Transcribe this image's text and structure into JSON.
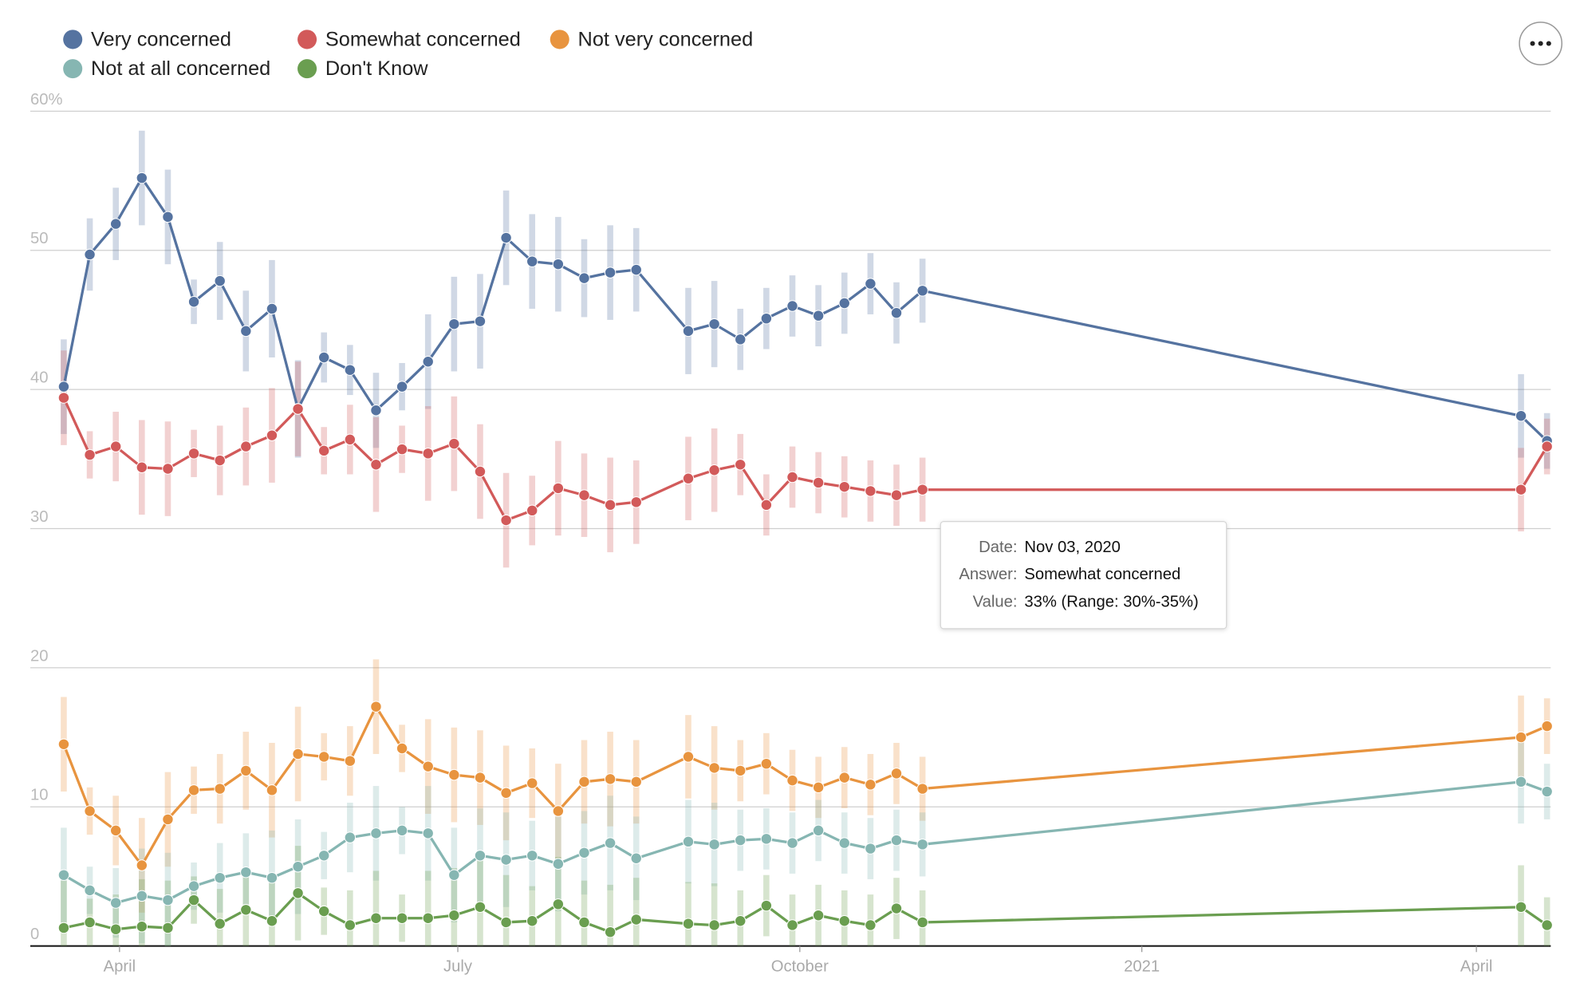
{
  "chart_data": {
    "type": "line",
    "x": [
      "2020-03-17",
      "2020-03-24",
      "2020-03-31",
      "2020-04-07",
      "2020-04-14",
      "2020-04-21",
      "2020-04-28",
      "2020-05-05",
      "2020-05-12",
      "2020-05-19",
      "2020-05-26",
      "2020-06-02",
      "2020-06-09",
      "2020-06-16",
      "2020-06-23",
      "2020-06-30",
      "2020-07-07",
      "2020-07-14",
      "2020-07-21",
      "2020-07-28",
      "2020-08-04",
      "2020-08-11",
      "2020-08-18",
      "2020-09-01",
      "2020-09-08",
      "2020-09-15",
      "2020-09-22",
      "2020-09-29",
      "2020-10-06",
      "2020-10-13",
      "2020-10-20",
      "2020-10-27",
      "2020-11-03",
      "2021-04-13",
      "2021-04-20"
    ],
    "xlim": [
      "2020-03-08",
      "2021-04-21"
    ],
    "xticks": [
      {
        "value": "2020-04-01",
        "label": "April"
      },
      {
        "value": "2020-07-01",
        "label": "July"
      },
      {
        "value": "2020-10-01",
        "label": "October"
      },
      {
        "value": "2021-01-01",
        "label": "2021"
      },
      {
        "value": "2021-04-01",
        "label": "April"
      }
    ],
    "ylim": [
      0,
      60
    ],
    "yticks": [
      0,
      10,
      20,
      30,
      40,
      50,
      {
        "value": 60,
        "label": "60%"
      }
    ],
    "grid": true,
    "series": [
      {
        "name": "Very concerned",
        "color": "#5573a0",
        "values": [
          40.2,
          49.7,
          51.9,
          55.2,
          52.4,
          46.3,
          47.8,
          44.2,
          45.8,
          38.6,
          42.3,
          41.4,
          38.5,
          40.2,
          42.0,
          44.7,
          44.9,
          50.9,
          49.2,
          49.0,
          48.0,
          48.4,
          48.6,
          44.2,
          44.7,
          43.6,
          45.1,
          46.0,
          45.3,
          46.2,
          47.6,
          45.5,
          47.1,
          38.1,
          36.3
        ],
        "errors": [
          3.4,
          2.6,
          2.6,
          3.4,
          3.4,
          1.6,
          2.8,
          2.9,
          3.5,
          3.5,
          1.8,
          1.8,
          2.7,
          1.7,
          3.4,
          3.4,
          3.4,
          3.4,
          3.4,
          3.4,
          2.8,
          3.4,
          3.0,
          3.1,
          3.1,
          2.2,
          2.2,
          2.2,
          2.2,
          2.2,
          2.2,
          2.2,
          2.3,
          3.0,
          2.0
        ]
      },
      {
        "name": "Somewhat concerned",
        "color": "#d25a5a",
        "values": [
          39.4,
          35.3,
          35.9,
          34.4,
          34.3,
          35.4,
          34.9,
          35.9,
          36.7,
          38.6,
          35.6,
          36.4,
          34.6,
          35.7,
          35.4,
          36.1,
          34.1,
          30.6,
          31.3,
          32.9,
          32.4,
          31.7,
          31.9,
          33.6,
          34.2,
          34.6,
          31.7,
          33.7,
          33.3,
          33.0,
          32.7,
          32.4,
          32.8,
          32.8,
          35.9
        ],
        "errors": [
          3.4,
          1.7,
          2.5,
          3.4,
          3.4,
          1.7,
          2.5,
          2.8,
          3.4,
          3.4,
          1.7,
          2.5,
          3.4,
          1.7,
          3.4,
          3.4,
          3.4,
          3.4,
          2.5,
          3.4,
          3.0,
          3.4,
          3.0,
          3.0,
          3.0,
          2.2,
          2.2,
          2.2,
          2.2,
          2.2,
          2.2,
          2.2,
          2.3,
          3.0,
          2.0
        ]
      },
      {
        "name": "Not very concerned",
        "color": "#e8943f",
        "values": [
          14.5,
          9.7,
          8.3,
          5.8,
          9.1,
          11.2,
          11.3,
          12.6,
          11.2,
          13.8,
          13.6,
          13.3,
          17.2,
          14.2,
          12.9,
          12.3,
          12.1,
          11.0,
          11.7,
          9.7,
          11.8,
          12.0,
          11.8,
          13.6,
          12.8,
          12.6,
          13.1,
          11.9,
          11.4,
          12.1,
          11.6,
          12.4,
          11.3,
          15.0,
          15.8
        ],
        "errors": [
          3.4,
          1.7,
          2.5,
          3.4,
          3.4,
          1.7,
          2.5,
          2.8,
          3.4,
          3.4,
          1.7,
          2.5,
          3.4,
          1.7,
          3.4,
          3.4,
          3.4,
          3.4,
          2.5,
          3.4,
          3.0,
          3.4,
          3.0,
          3.0,
          3.0,
          2.2,
          2.2,
          2.2,
          2.2,
          2.2,
          2.2,
          2.2,
          2.3,
          3.0,
          2.0
        ]
      },
      {
        "name": "Not at all concerned",
        "color": "#86b6b2",
        "values": [
          5.1,
          4.0,
          3.1,
          3.6,
          3.3,
          4.3,
          4.9,
          5.3,
          4.9,
          5.7,
          6.5,
          7.8,
          8.1,
          8.3,
          8.1,
          5.1,
          6.5,
          6.2,
          6.5,
          5.9,
          6.7,
          7.4,
          6.3,
          7.5,
          7.3,
          7.6,
          7.7,
          7.4,
          8.3,
          7.4,
          7.0,
          7.6,
          7.3,
          11.8,
          11.1
        ],
        "errors": [
          3.4,
          1.7,
          2.5,
          3.4,
          3.4,
          1.7,
          2.5,
          2.8,
          3.4,
          3.4,
          1.7,
          2.5,
          3.4,
          1.7,
          3.4,
          3.4,
          3.4,
          3.4,
          2.5,
          3.4,
          3.0,
          3.4,
          3.0,
          3.0,
          3.0,
          2.2,
          2.2,
          2.2,
          2.2,
          2.2,
          2.2,
          2.2,
          2.3,
          3.0,
          2.0
        ]
      },
      {
        "name": "Don't Know",
        "color": "#6a9e50",
        "values": [
          1.3,
          1.7,
          1.2,
          1.4,
          1.3,
          3.3,
          1.6,
          2.6,
          1.8,
          3.8,
          2.5,
          1.5,
          2.0,
          2.0,
          2.0,
          2.2,
          2.8,
          1.7,
          1.8,
          3.0,
          1.7,
          1.0,
          1.9,
          1.6,
          1.5,
          1.8,
          2.9,
          1.5,
          2.2,
          1.8,
          1.5,
          2.7,
          1.7,
          2.8,
          1.5
        ],
        "errors": [
          3.4,
          1.7,
          2.5,
          3.4,
          3.4,
          1.7,
          2.5,
          2.8,
          3.4,
          3.4,
          1.7,
          2.5,
          3.4,
          1.7,
          3.4,
          3.4,
          3.4,
          3.4,
          2.5,
          3.4,
          3.0,
          3.4,
          3.0,
          3.0,
          3.0,
          2.2,
          2.2,
          2.2,
          2.2,
          2.2,
          2.2,
          2.2,
          2.3,
          3.0,
          2.0
        ]
      }
    ],
    "tooltip": [
      {
        "label": "Date:",
        "value": "Nov 03, 2020"
      },
      {
        "label": "Answer:",
        "value": "Somewhat concerned"
      },
      {
        "label": "Value:",
        "value": "33% (Range: 30%-35%)"
      }
    ]
  }
}
